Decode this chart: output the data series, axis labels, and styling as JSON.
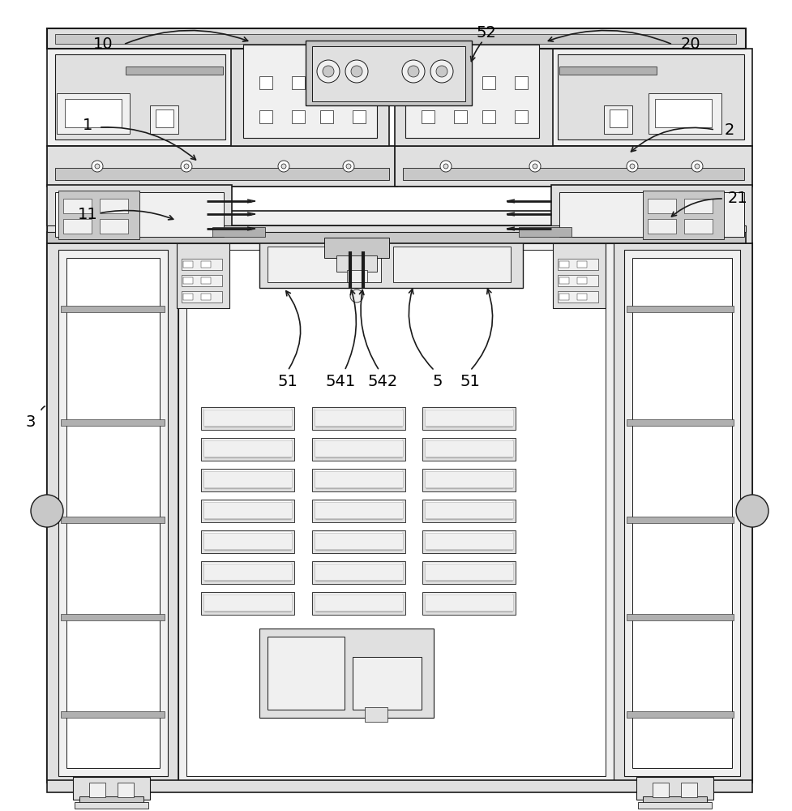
{
  "bg": "#ffffff",
  "lc": "#1a1a1a",
  "lc2": "#555555",
  "fig_w": 9.77,
  "fig_h": 10.0,
  "dpi": 100,
  "gray1": "#c8c8c8",
  "gray2": "#e0e0e0",
  "gray3": "#f0f0f0",
  "gray4": "#b0b0b0",
  "gray5": "#d8d8d8"
}
